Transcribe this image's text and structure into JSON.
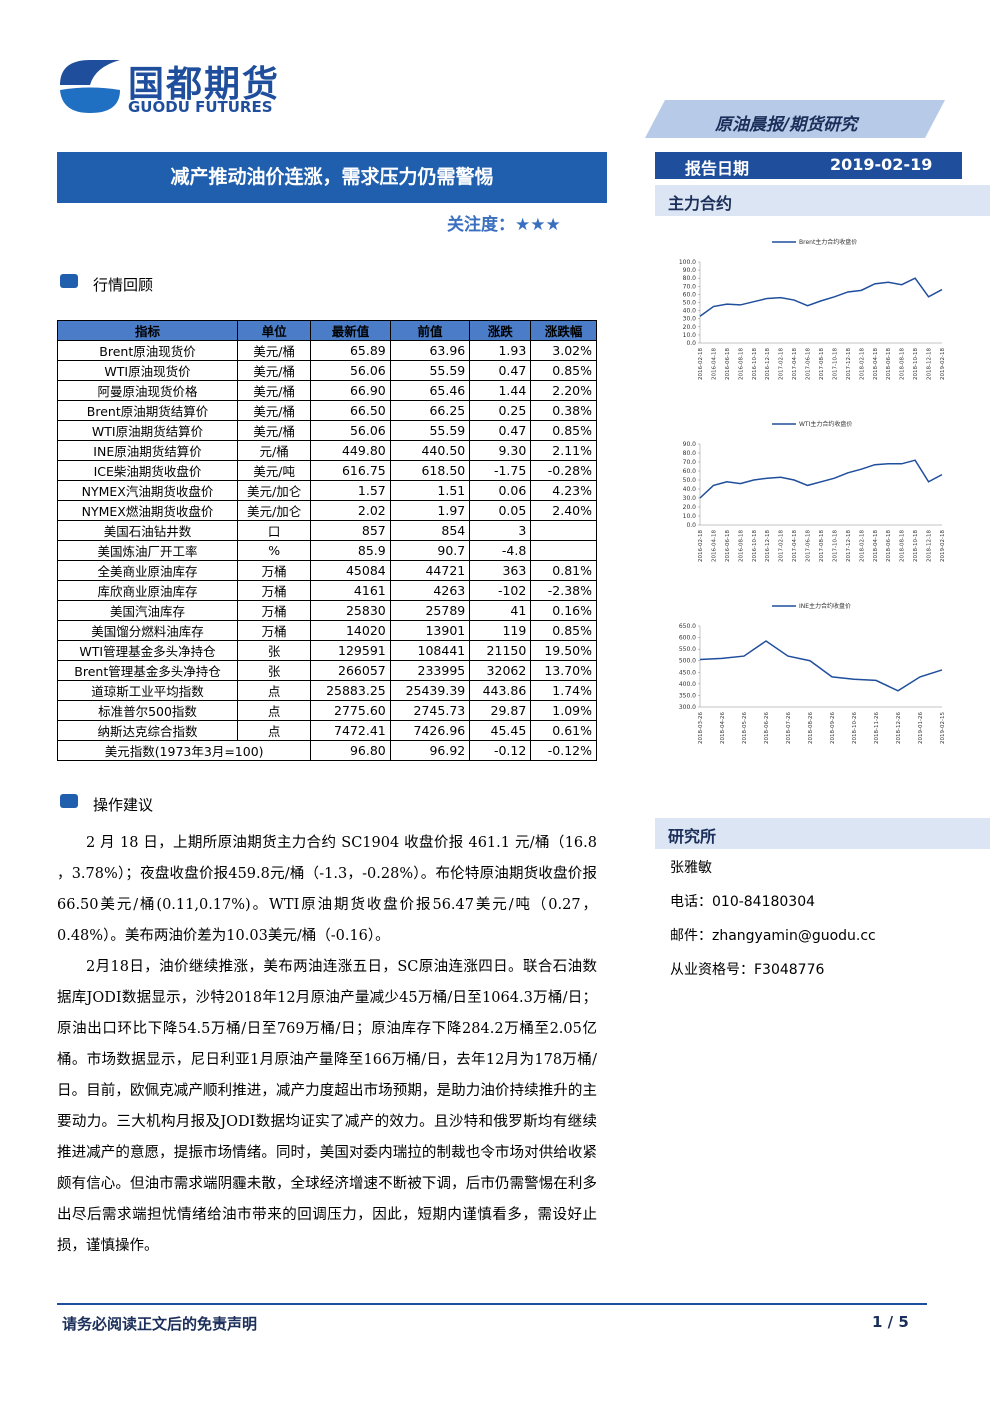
{
  "header": {
    "logo_cn": "国都期货",
    "logo_en": "GUODU FUTURES",
    "section": "原油晨报/期货研究",
    "report_date_label": "报告日期",
    "report_date": "2019-02-19",
    "main_contract": "主力合约"
  },
  "title": "减产推动油价连涨，需求压力仍需警惕",
  "attention": "关注度：★★★",
  "review_heading": "行情回顾",
  "table": {
    "header": [
      "指标",
      "单位",
      "最新值",
      "前值",
      "涨跌",
      "涨跌幅"
    ],
    "rows": [
      [
        "Brent原油现货价",
        "美元/桶",
        "65.89",
        "63.96",
        "1.93",
        "3.02%"
      ],
      [
        "WTI原油现货价",
        "美元/桶",
        "56.06",
        "55.59",
        "0.47",
        "0.85%"
      ],
      [
        "阿曼原油现货价格",
        "美元/桶",
        "66.90",
        "65.46",
        "1.44",
        "2.20%"
      ],
      [
        "Brent原油期货结算价",
        "美元/桶",
        "66.50",
        "66.25",
        "0.25",
        "0.38%"
      ],
      [
        "WTI原油期货结算价",
        "美元/桶",
        "56.06",
        "55.59",
        "0.47",
        "0.85%"
      ],
      [
        "INE原油期货结算价",
        "元/桶",
        "449.80",
        "440.50",
        "9.30",
        "2.11%"
      ],
      [
        "ICE柴油期货收盘价",
        "美元/吨",
        "616.75",
        "618.50",
        "-1.75",
        "-0.28%"
      ],
      [
        "NYMEX汽油期货收盘价",
        "美元/加仑",
        "1.57",
        "1.51",
        "0.06",
        "4.23%"
      ],
      [
        "NYMEX燃油期货收盘价",
        "美元/加仑",
        "2.02",
        "1.97",
        "0.05",
        "2.40%"
      ],
      [
        "美国石油钻井数",
        "口",
        "857",
        "854",
        "3"
      ],
      [
        "美国炼油厂开工率",
        "%",
        "85.9",
        "90.7",
        "-4.8"
      ],
      [
        "全美商业原油库存",
        "万桶",
        "45084",
        "44721",
        "363",
        "0.81%"
      ],
      [
        "库欣商业原油库存",
        "万桶",
        "4161",
        "4263",
        "-102",
        "-2.38%"
      ],
      [
        "美国汽油库存",
        "万桶",
        "25830",
        "25789",
        "41",
        "0.16%"
      ],
      [
        "美国馏分燃料油库存",
        "万桶",
        "14020",
        "13901",
        "119",
        "0.85%"
      ],
      [
        "WTI管理基金多头净持仓",
        "张",
        "129591",
        "108441",
        "21150",
        "19.50%"
      ],
      [
        "Brent管理基金多头净持仓",
        "张",
        "266057",
        "233995",
        "32062",
        "13.70%"
      ],
      [
        "道琼斯工业平均指数",
        "点",
        "25883.25",
        "25439.39",
        "443.86",
        "1.74%"
      ],
      [
        "标准普尔500指数",
        "点",
        "2775.60",
        "2745.73",
        "29.87",
        "1.09%"
      ],
      [
        "纳斯达克综合指数",
        "点",
        "7472.41",
        "7426.96",
        "45.45",
        "0.61%"
      ],
      [
        "美元指数(1973年3月=100)",
        "96.80",
        "96.92",
        "-0.12",
        "-0.12%"
      ]
    ]
  },
  "advice_heading": "操作建议",
  "paragraphs": [
    "2 月 18 日，上期所原油期货主力合约 SC1904 收盘价报 461.1  元/桶（16.8 ，3.78%）；夜盘收盘价报459.8元/桶（-1.3，-0.28%）。布伦特原油期货收盘价报66.50美元/桶(0.11,0.17%)。WTI原油期货收盘价报56.47美元/吨（0.27，0.48%）。美布两油价差为10.03美元/桶（-0.16）。",
    "2月18日，油价继续推涨，美布两油连涨五日，SC原油连涨四日。联合石油数据库JODI数据显示，沙特2018年12月原油产量减少45万桶/日至1064.3万桶/日；原油出口环比下降54.5万桶/日至769万桶/日；原油库存下降284.2万桶至2.05亿桶。市场数据显示，尼日利亚1月原油产量降至166万桶/日，去年12月为178万桶/日。目前，欧佩克减产顺利推进，减产力度超出市场预期，是助力油价持续推升的主要动力。三大机构月报及JODI数据均证实了减产的效力。且沙特和俄罗斯均有继续推进减产的意愿，提振市场情绪。同时，美国对委内瑞拉的制裁也令市场对供给收紧颇有信心。但油市需求端阴霾未散，全球经济增速不断被下调，后市仍需警惕在利多出尽后需求端担忧情绪给油市带来的回调压力，因此，短期内谨慎看多，需设好止损，谨慎操作。"
  ],
  "institute": {
    "heading": "研究所",
    "name": "张雅敏",
    "phone": "电话：010-84180304",
    "email": "邮件：zhangyamin@guodu.cc",
    "license": "从业资格号：F3048776"
  },
  "footer": {
    "disclaimer": "请务必阅读正文后的免责声明",
    "page": "1 / 5"
  },
  "chart_data": [
    {
      "type": "line",
      "categories": [
        "2016-02-18",
        "2016-04-18",
        "2016-06-18",
        "2016-08-18",
        "2016-10-18",
        "2016-12-18",
        "2017-02-18",
        "2017-04-18",
        "2017-06-18",
        "2017-08-18",
        "2017-10-18",
        "2017-12-18",
        "2018-02-18",
        "2018-04-18",
        "2018-06-18",
        "2018-08-18",
        "2018-10-18",
        "2018-12-18",
        "2019-02-18"
      ],
      "series": [
        {
          "name": "Brent主力合约收盘价",
          "color": "#1f4e9c",
          "values": [
            33,
            45,
            48,
            47,
            51,
            55,
            56,
            53,
            46,
            52,
            57,
            63,
            65,
            73,
            75,
            72,
            80,
            57,
            66
          ]
        }
      ],
      "ylim": [
        0,
        100
      ],
      "yticks": [
        {
          "value": 0,
          "label": "0.0"
        },
        {
          "value": 10,
          "label": "10.0"
        },
        {
          "value": 20,
          "label": "20.0"
        },
        {
          "value": 30,
          "label": "30.0"
        },
        {
          "value": 40,
          "label": "40.0"
        },
        {
          "value": 50,
          "label": "50.0"
        },
        {
          "value": 60,
          "label": "60.0"
        },
        {
          "value": 70,
          "label": "70.0"
        },
        {
          "value": 80,
          "label": "80.0"
        },
        {
          "value": 90,
          "label": "90.0"
        },
        {
          "value": 100,
          "label": "100.0"
        }
      ]
    },
    {
      "type": "line",
      "categories": [
        "2016-02-18",
        "2016-04-18",
        "2016-06-18",
        "2016-08-18",
        "2016-10-18",
        "2016-12-18",
        "2017-02-18",
        "2017-04-18",
        "2017-06-18",
        "2017-08-18",
        "2017-10-18",
        "2017-12-18",
        "2018-02-18",
        "2018-04-18",
        "2018-06-18",
        "2018-08-18",
        "2018-10-18",
        "2018-12-18",
        "2019-02-18"
      ],
      "series": [
        {
          "name": "WTI主力合约收盘价",
          "color": "#1f4e9c",
          "values": [
            30,
            44,
            48,
            46,
            50,
            52,
            53,
            50,
            44,
            48,
            52,
            58,
            62,
            67,
            68,
            68,
            72,
            48,
            56
          ]
        }
      ],
      "ylim": [
        0,
        90
      ],
      "yticks": [
        {
          "value": 0,
          "label": "0.0"
        },
        {
          "value": 10,
          "label": "10.0"
        },
        {
          "value": 20,
          "label": "20.0"
        },
        {
          "value": 30,
          "label": "30.0"
        },
        {
          "value": 40,
          "label": "40.0"
        },
        {
          "value": 50,
          "label": "50.0"
        },
        {
          "value": 60,
          "label": "60.0"
        },
        {
          "value": 70,
          "label": "70.0"
        },
        {
          "value": 80,
          "label": "80.0"
        },
        {
          "value": 90,
          "label": "90.0"
        }
      ]
    },
    {
      "type": "line",
      "categories": [
        "2018-03-26",
        "2018-04-26",
        "2018-05-26",
        "2018-06-26",
        "2018-07-26",
        "2018-08-26",
        "2018-09-26",
        "2018-10-26",
        "2018-11-26",
        "2018-12-26",
        "2019-01-26",
        "2019-02-15"
      ],
      "series": [
        {
          "name": "INE主力合约收盘价",
          "color": "#1f4e9c",
          "values": [
            505,
            510,
            520,
            585,
            520,
            500,
            430,
            420,
            415,
            370,
            430,
            460
          ]
        }
      ],
      "ylim": [
        300,
        650
      ],
      "yticks": [
        {
          "value": 300,
          "label": "300.0"
        },
        {
          "value": 350,
          "label": "350.0"
        },
        {
          "value": 400,
          "label": "400.0"
        },
        {
          "value": 450,
          "label": "450.0"
        },
        {
          "value": 500,
          "label": "500.0"
        },
        {
          "value": 550,
          "label": "550.0"
        },
        {
          "value": 600,
          "label": "600.0"
        },
        {
          "value": 650,
          "label": "650.0"
        }
      ]
    }
  ]
}
